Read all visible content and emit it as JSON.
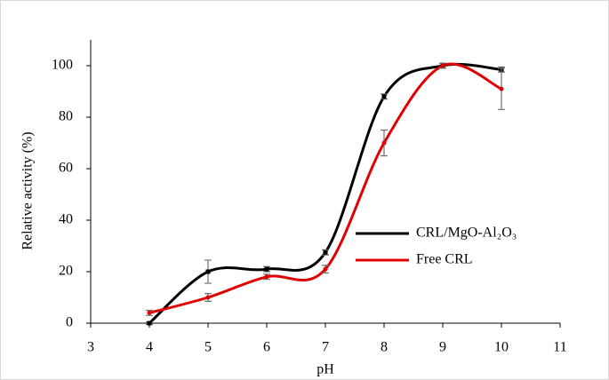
{
  "chart_data": {
    "type": "line",
    "x_label": "pH",
    "y_label": "Relative activity (%)",
    "x": [
      4,
      5,
      6,
      7,
      8,
      9,
      10
    ],
    "series": [
      {
        "name": "CRL/MgO-Al₂O₃",
        "color": "#000000",
        "marker": "square",
        "values": [
          0,
          20,
          21,
          27.5,
          88,
          100,
          98.5
        ],
        "errors": [
          0.5,
          4.5,
          1,
          1,
          1,
          1,
          1
        ]
      },
      {
        "name": "Free CRL",
        "color": "#e00000",
        "marker": "circle",
        "values": [
          4,
          10,
          18,
          21,
          70,
          100,
          91
        ],
        "errors": [
          1,
          1.5,
          1,
          1.5,
          5,
          1,
          8
        ]
      }
    ],
    "xlim": [
      3,
      11
    ],
    "xticks": [
      3,
      4,
      5,
      6,
      7,
      8,
      9,
      10,
      11
    ],
    "ylim": [
      0,
      110
    ],
    "yticks": [
      0,
      20,
      40,
      60,
      80,
      100
    ],
    "smooth": true,
    "grid": false
  }
}
